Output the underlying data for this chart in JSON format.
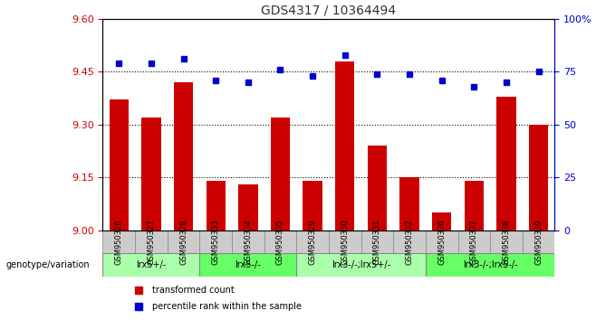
{
  "title": "GDS4317 / 10364494",
  "samples": [
    "GSM950326",
    "GSM950327",
    "GSM950328",
    "GSM950333",
    "GSM950334",
    "GSM950335",
    "GSM950329",
    "GSM950330",
    "GSM950331",
    "GSM950332",
    "GSM950336",
    "GSM950337",
    "GSM950338",
    "GSM950339"
  ],
  "bar_values": [
    9.37,
    9.32,
    9.42,
    9.14,
    9.13,
    9.32,
    9.14,
    9.48,
    9.24,
    9.15,
    9.05,
    9.14,
    9.38,
    9.3
  ],
  "percentile_values": [
    79,
    79,
    81,
    71,
    70,
    76,
    73,
    83,
    74,
    74,
    71,
    68,
    70,
    75
  ],
  "ylim_left": [
    9.0,
    9.6
  ],
  "ylim_right": [
    0,
    100
  ],
  "yticks_left": [
    9.0,
    9.15,
    9.3,
    9.45,
    9.6
  ],
  "yticks_right": [
    0,
    25,
    50,
    75,
    100
  ],
  "bar_color": "#cc0000",
  "percentile_color": "#0000cc",
  "groups": [
    {
      "label": "lrx5+/-",
      "start": 0,
      "end": 3,
      "color": "#aaffaa"
    },
    {
      "label": "lrx5-/-",
      "start": 3,
      "end": 6,
      "color": "#66ff66"
    },
    {
      "label": "lrx3-/-;lrx5+/-",
      "start": 6,
      "end": 10,
      "color": "#aaffaa"
    },
    {
      "label": "lrx3-/-;lrx5-/-",
      "start": 10,
      "end": 14,
      "color": "#66ff66"
    }
  ],
  "genotype_label": "genotype/variation",
  "legend_bar_label": "transformed count",
  "legend_pct_label": "percentile rank within the sample",
  "bg_color": "#ffffff",
  "plot_bg_color": "#ffffff",
  "tick_color_left": "#cc0000",
  "tick_color_right": "#0000cc",
  "grid_color": "#000000",
  "sample_area_color": "#cccccc"
}
